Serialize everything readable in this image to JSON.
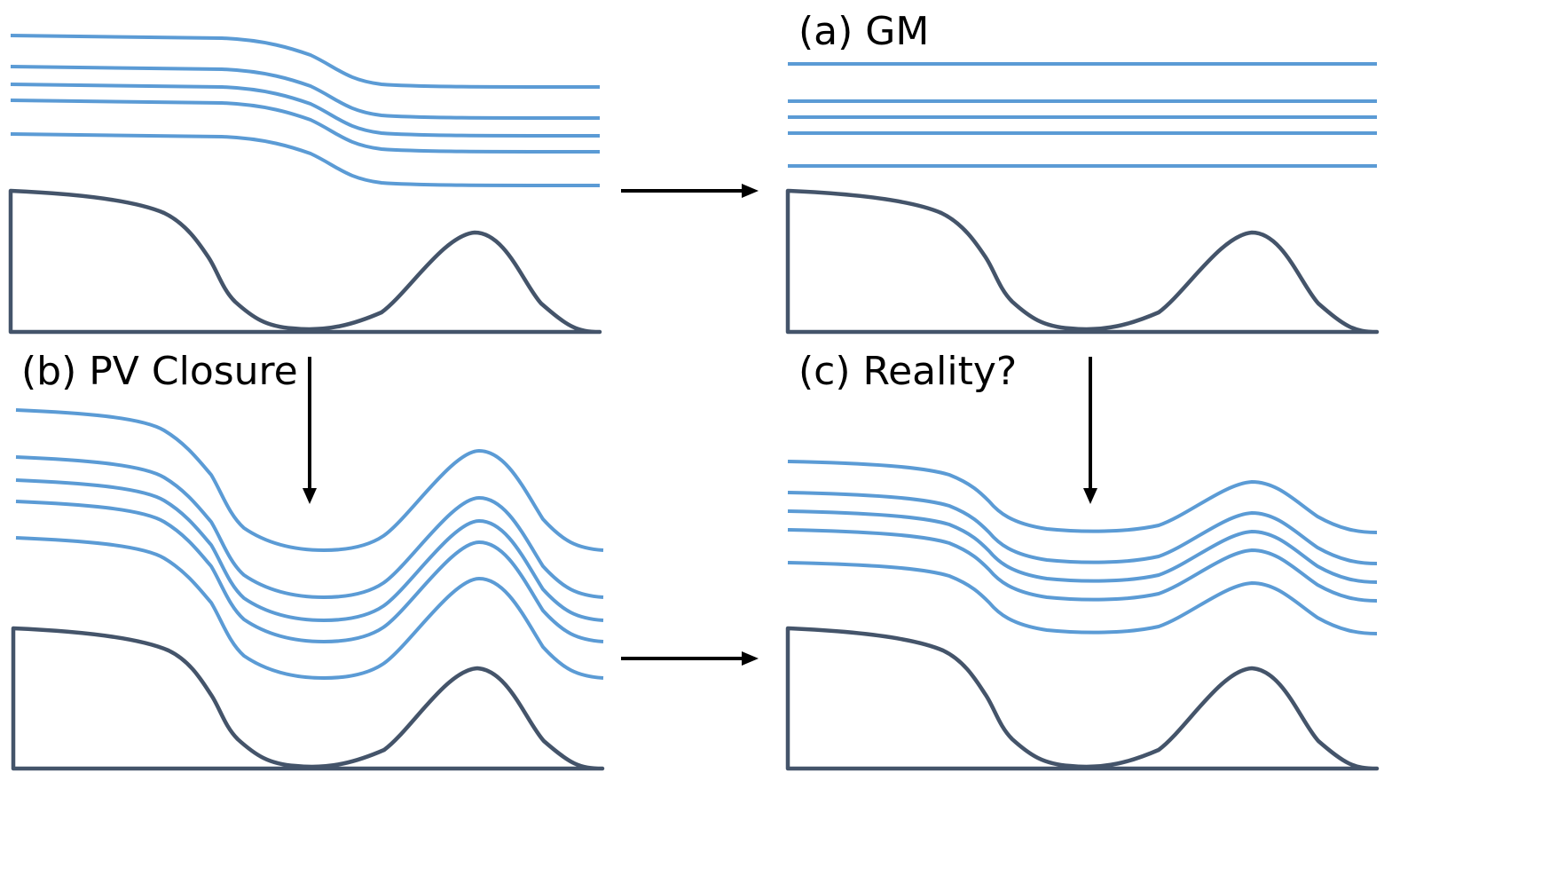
{
  "labels": {
    "gm": "(a) GM",
    "pv_closure": "(b) PV Closure",
    "reality": "(c) Reality?"
  },
  "colors": {
    "isopycnal": "#5b9bd5",
    "topography": "#44546a",
    "arrow": "#000000"
  },
  "panels": [
    {
      "id": "initial",
      "isopycnal_shape": "step-down-smooth"
    },
    {
      "id": "gm",
      "isopycnal_shape": "flat"
    },
    {
      "id": "pv-closure",
      "isopycnal_shape": "follows-topography"
    },
    {
      "id": "reality",
      "isopycnal_shape": "partially-follows-topography"
    }
  ]
}
